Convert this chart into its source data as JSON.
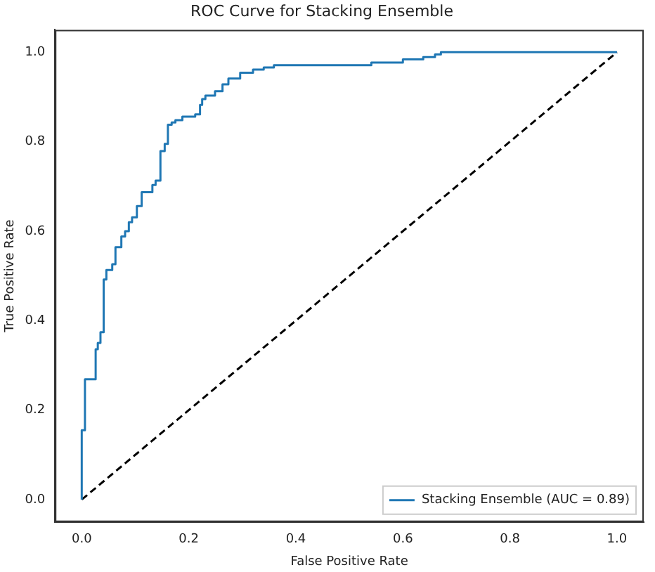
{
  "chart_data": {
    "type": "step",
    "title": "ROC Curve for Stacking Ensemble",
    "xlabel": "False Positive Rate",
    "ylabel": "True Positive Rate",
    "xlim": [
      -0.05,
      1.05
    ],
    "ylim": [
      -0.05,
      1.05
    ],
    "xticks": [
      {
        "value": 0,
        "label": "0.0"
      },
      {
        "value": 0.2,
        "label": "0.2"
      },
      {
        "value": 0.4,
        "label": "0.4"
      },
      {
        "value": 0.6,
        "label": "0.6"
      },
      {
        "value": 0.8,
        "label": "0.8"
      },
      {
        "value": 1,
        "label": "1.0"
      }
    ],
    "yticks": [
      {
        "value": 0,
        "label": "0.0"
      },
      {
        "value": 0.2,
        "label": "0.2"
      },
      {
        "value": 0.4,
        "label": "0.4"
      },
      {
        "value": 0.6,
        "label": "0.6"
      },
      {
        "value": 0.8,
        "label": "0.8"
      },
      {
        "value": 1,
        "label": "1.0"
      }
    ],
    "grid": false,
    "legend": "bottom right",
    "marker": "none",
    "series": [
      {
        "name": "Stacking Ensemble (AUC = 0.89)",
        "color": "#1f77b4",
        "type": "step",
        "line_style": "solid",
        "x": [
          0,
          0,
          0.006,
          0.026,
          0.03,
          0.035,
          0.041,
          0.046,
          0.057,
          0.063,
          0.074,
          0.081,
          0.088,
          0.094,
          0.103,
          0.112,
          0.132,
          0.138,
          0.147,
          0.155,
          0.161,
          0.168,
          0.175,
          0.188,
          0.212,
          0.221,
          0.225,
          0.231,
          0.249,
          0.263,
          0.274,
          0.296,
          0.32,
          0.34,
          0.359,
          0.541,
          0.6,
          0.638,
          0.66,
          0.671,
          0.932,
          1
        ],
        "values": [
          0,
          0.058,
          0.155,
          0.269,
          0.336,
          0.35,
          0.374,
          0.492,
          0.513,
          0.526,
          0.564,
          0.588,
          0.6,
          0.62,
          0.631,
          0.656,
          0.687,
          0.703,
          0.713,
          0.779,
          0.795,
          0.838,
          0.843,
          0.848,
          0.856,
          0.861,
          0.882,
          0.895,
          0.903,
          0.913,
          0.928,
          0.941,
          0.954,
          0.961,
          0.966,
          0.971,
          0.977,
          0.984,
          0.989,
          0.995,
          1,
          1
        ]
      },
      {
        "color": "#000000",
        "type": "line",
        "line_style": "dashed",
        "x": [
          0,
          1
        ],
        "values": [
          0,
          1
        ]
      }
    ]
  }
}
